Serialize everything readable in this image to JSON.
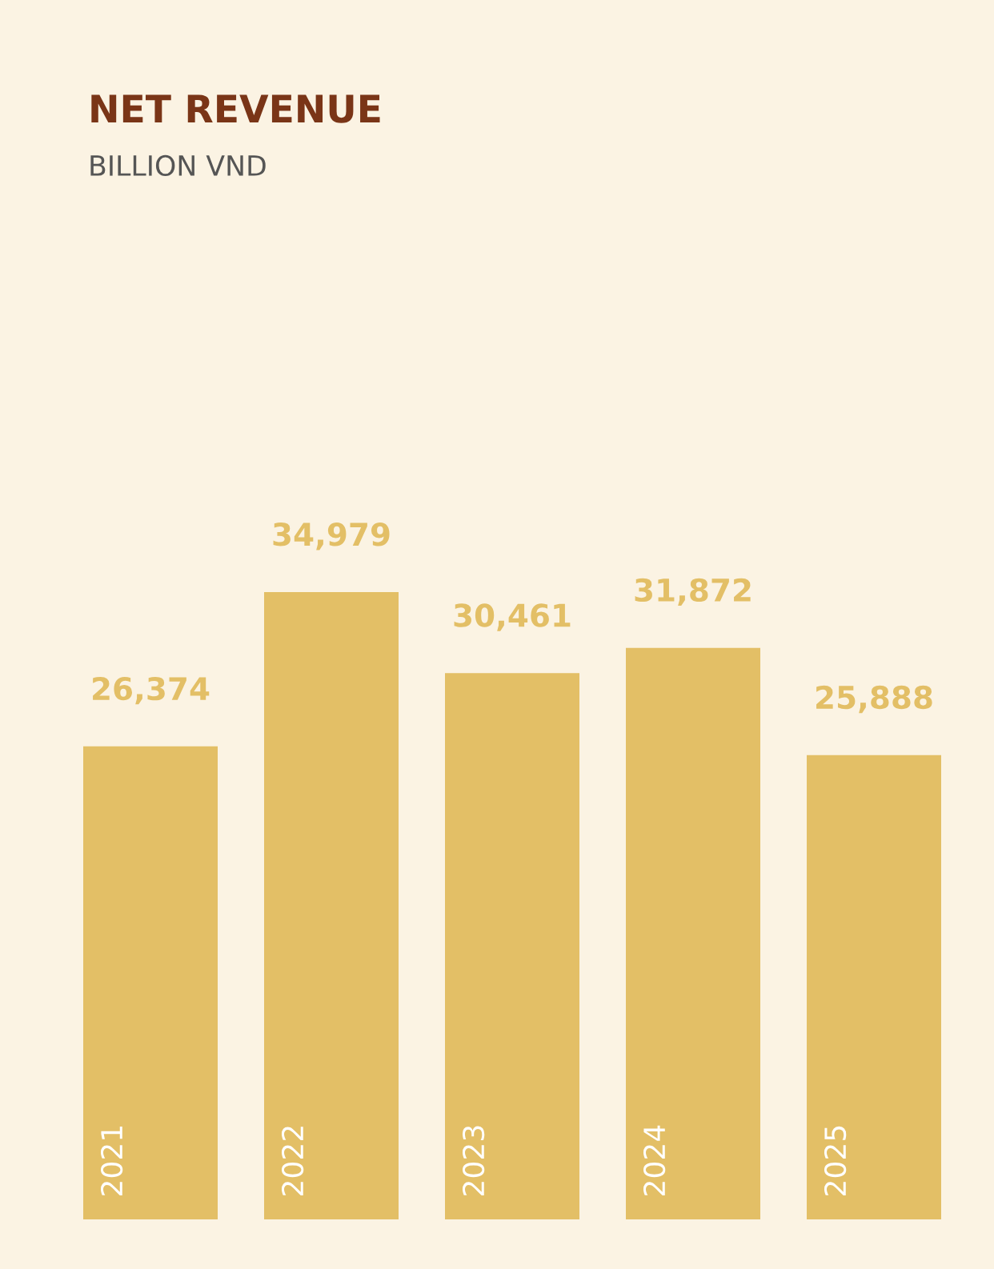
{
  "chart_data": {
    "type": "bar",
    "title": "NET REVENUE",
    "subtitle": "BILLION VND",
    "categories": [
      "2021",
      "2022",
      "2023",
      "2024",
      "2025"
    ],
    "values": [
      26374,
      34979,
      30461,
      31872,
      25888
    ],
    "value_labels": [
      "26,374",
      "34,979",
      "30,461",
      "31,872",
      "25,888"
    ],
    "color": "#e3bf66"
  }
}
